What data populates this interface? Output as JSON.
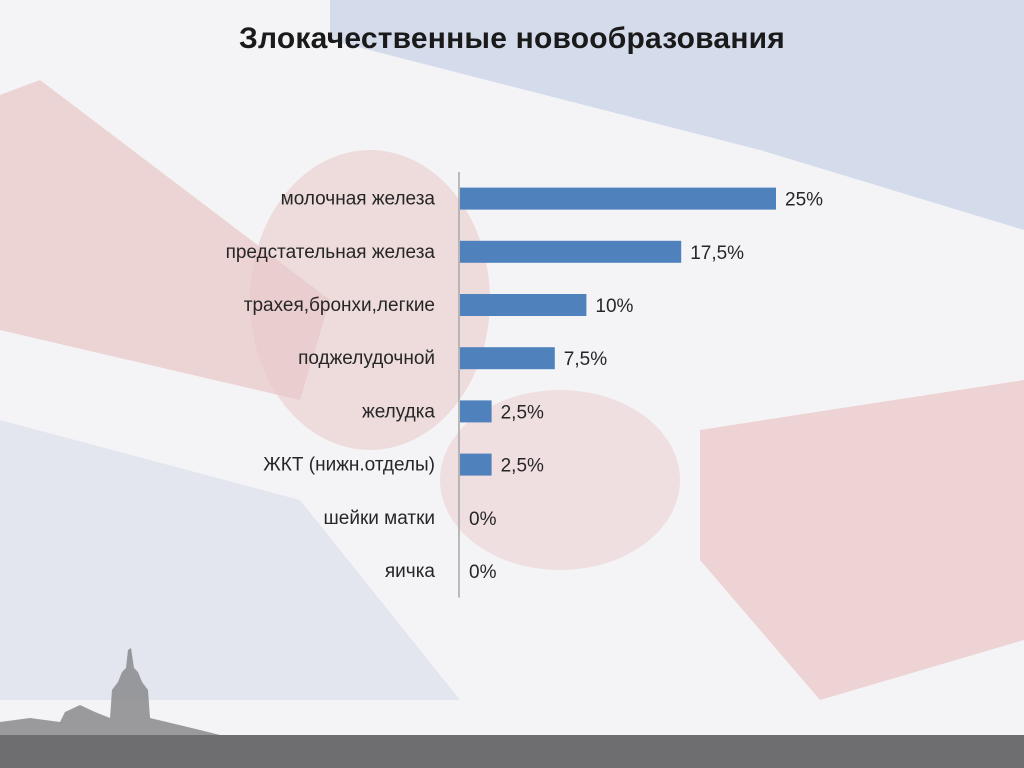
{
  "slide": {
    "title": "Злокачественные новообразования"
  },
  "colors": {
    "bar": "#4f81bd",
    "axis": "#a6a6a6",
    "text": "#262626",
    "footer": "#6e6e70"
  },
  "chart_data": {
    "type": "bar",
    "orientation": "horizontal",
    "title": "",
    "xlabel": "",
    "ylabel": "",
    "grid": false,
    "legend": "none",
    "xlim": [
      0,
      25
    ],
    "categories": [
      "молочная железа",
      "предстательная железа",
      "трахея,бронхи,легкие",
      "поджелудочной",
      "желудка",
      "ЖКТ (нижн.отделы)",
      "шейки матки",
      "яичка"
    ],
    "values": [
      25,
      17.5,
      10,
      7.5,
      2.5,
      2.5,
      0,
      0
    ],
    "data_labels": [
      "25%",
      "17,5%",
      "10%",
      "7,5%",
      "2,5%",
      "2,5%",
      "0%",
      "0%"
    ]
  }
}
